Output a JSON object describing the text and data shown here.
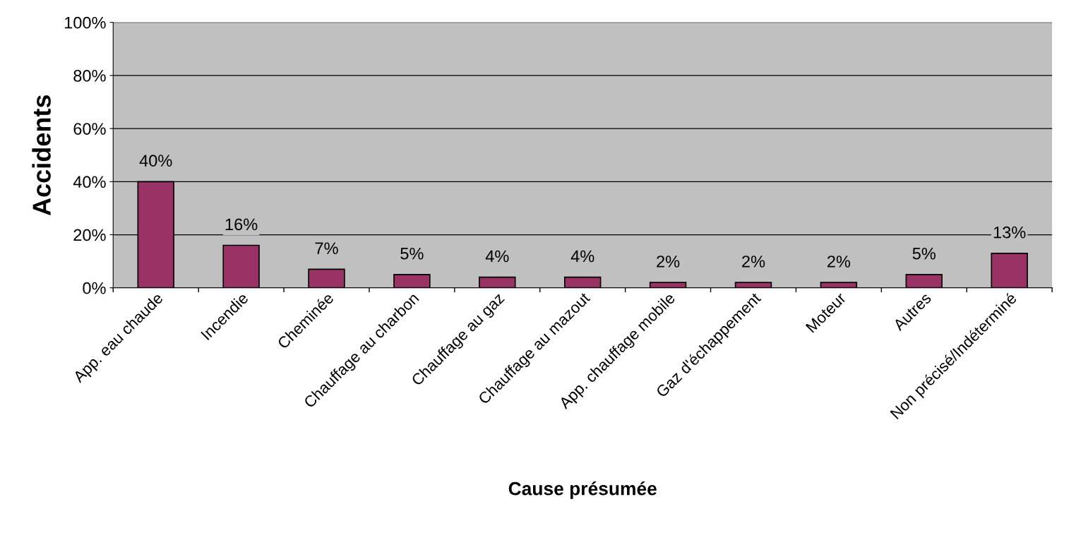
{
  "chart_data": {
    "type": "bar",
    "xlabel": "Cause présumée",
    "ylabel": "Accidents",
    "categories": [
      "App. eau chaude",
      "Incendie",
      "Cheminée",
      "Chauffage au charbon",
      "Chauffage au gaz",
      "Chauffage au mazout",
      "App. chauffage mobile",
      "Gaz d'échappement",
      "Moteur",
      "Autres",
      "Non précisé/Indéterminé"
    ],
    "values": [
      40,
      16,
      7,
      5,
      4,
      4,
      2,
      2,
      2,
      5,
      13
    ],
    "value_labels": [
      "40%",
      "16%",
      "7%",
      "5%",
      "4%",
      "4%",
      "2%",
      "2%",
      "2%",
      "5%",
      "13%"
    ],
    "color": "#993366",
    "ylim": [
      0,
      100
    ],
    "yticks": [
      {
        "value": 0,
        "label": "0%"
      },
      {
        "value": 20,
        "label": "20%"
      },
      {
        "value": 40,
        "label": "40%"
      },
      {
        "value": 60,
        "label": "60%"
      },
      {
        "value": 80,
        "label": "80%"
      },
      {
        "value": 100,
        "label": "100%"
      }
    ],
    "grid": "y",
    "legend": false
  }
}
